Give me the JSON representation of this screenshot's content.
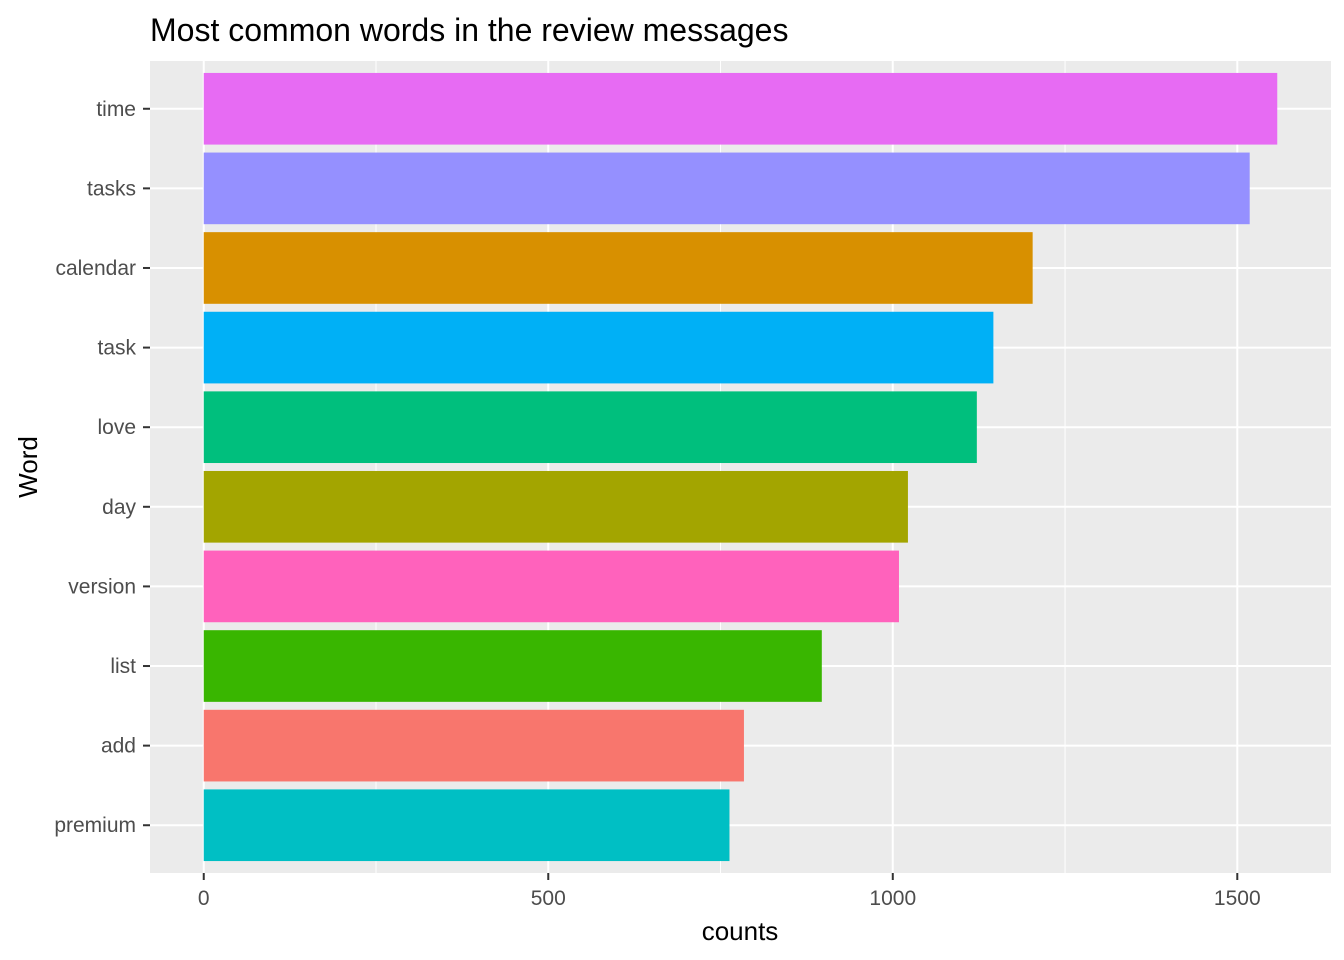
{
  "chart_data": {
    "type": "bar",
    "orientation": "horizontal",
    "title": "Most common words in the review messages",
    "xlabel": "counts",
    "ylabel": "Word",
    "categories": [
      "time",
      "tasks",
      "calendar",
      "task",
      "love",
      "day",
      "version",
      "list",
      "add",
      "premium"
    ],
    "values": [
      1558,
      1518,
      1203,
      1146,
      1122,
      1022,
      1009,
      897,
      784,
      763
    ],
    "colors": [
      "#E76BF3",
      "#9590FF",
      "#D89000",
      "#00B0F6",
      "#00BF7D",
      "#A3A500",
      "#FF62BC",
      "#39B600",
      "#F8766D",
      "#00BFC4"
    ],
    "xlim": [
      -78,
      1636
    ],
    "xticks": [
      0,
      500,
      1000,
      1500
    ],
    "xtick_labels": [
      "0",
      "500",
      "1000",
      "1500"
    ],
    "grid": true,
    "panel_background": "#EBEBEB",
    "grid_color": "#FFFFFF",
    "legend": "none"
  }
}
